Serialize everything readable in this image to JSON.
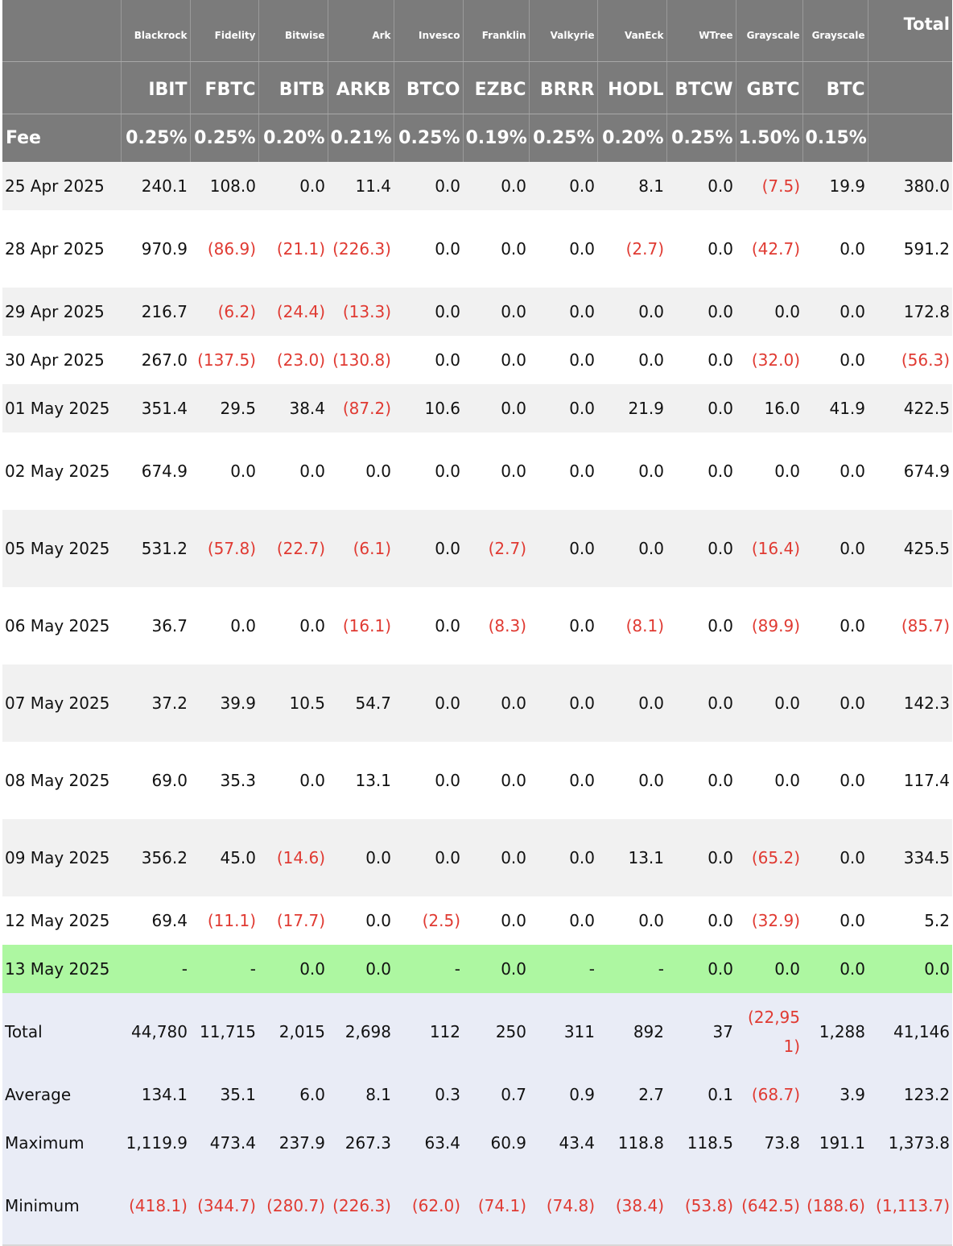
{
  "header": {
    "issuers": [
      "Blackrock",
      "Fidelity",
      "Bitwise",
      "Ark",
      "Invesco",
      "Franklin",
      "Valkyrie",
      "VanEck",
      "WTree",
      "Grayscale",
      "Grayscale"
    ],
    "total_label": "Total",
    "tickers": [
      "IBIT",
      "FBTC",
      "BITB",
      "ARKB",
      "BTCO",
      "EZBC",
      "BRRR",
      "HODL",
      "BTCW",
      "GBTC",
      "BTC"
    ],
    "fee_label": "Fee",
    "fees": [
      "0.25%",
      "0.25%",
      "0.20%",
      "0.21%",
      "0.25%",
      "0.19%",
      "0.25%",
      "0.20%",
      "0.25%",
      "1.50%",
      "0.15%"
    ]
  },
  "rows": [
    {
      "date": "25 Apr 2025",
      "values": [
        "240.1",
        "108.0",
        "0.0",
        "11.4",
        "0.0",
        "0.0",
        "0.0",
        "8.1",
        "0.0",
        "(7.5)",
        "19.9",
        "380.0"
      ]
    },
    {
      "date": "28 Apr 2025",
      "values": [
        "970.9",
        "(86.9)",
        "(21.1)",
        "(226.3)",
        "0.0",
        "0.0",
        "0.0",
        "(2.7)",
        "0.0",
        "(42.7)",
        "0.0",
        "591.2"
      ]
    },
    {
      "date": "29 Apr 2025",
      "values": [
        "216.7",
        "(6.2)",
        "(24.4)",
        "(13.3)",
        "0.0",
        "0.0",
        "0.0",
        "0.0",
        "0.0",
        "0.0",
        "0.0",
        "172.8"
      ]
    },
    {
      "date": "30 Apr 2025",
      "values": [
        "267.0",
        "(137.5)",
        "(23.0)",
        "(130.8)",
        "0.0",
        "0.0",
        "0.0",
        "0.0",
        "0.0",
        "(32.0)",
        "0.0",
        "(56.3)"
      ]
    },
    {
      "date": "01 May 2025",
      "values": [
        "351.4",
        "29.5",
        "38.4",
        "(87.2)",
        "10.6",
        "0.0",
        "0.0",
        "21.9",
        "0.0",
        "16.0",
        "41.9",
        "422.5"
      ]
    },
    {
      "date": "02 May 2025",
      "values": [
        "674.9",
        "0.0",
        "0.0",
        "0.0",
        "0.0",
        "0.0",
        "0.0",
        "0.0",
        "0.0",
        "0.0",
        "0.0",
        "674.9"
      ]
    },
    {
      "date": "05 May 2025",
      "values": [
        "531.2",
        "(57.8)",
        "(22.7)",
        "(6.1)",
        "0.0",
        "(2.7)",
        "0.0",
        "0.0",
        "0.0",
        "(16.4)",
        "0.0",
        "425.5"
      ]
    },
    {
      "date": "06 May 2025",
      "values": [
        "36.7",
        "0.0",
        "0.0",
        "(16.1)",
        "0.0",
        "(8.3)",
        "0.0",
        "(8.1)",
        "0.0",
        "(89.9)",
        "0.0",
        "(85.7)"
      ]
    },
    {
      "date": "07 May 2025",
      "values": [
        "37.2",
        "39.9",
        "10.5",
        "54.7",
        "0.0",
        "0.0",
        "0.0",
        "0.0",
        "0.0",
        "0.0",
        "0.0",
        "142.3"
      ]
    },
    {
      "date": "08 May 2025",
      "values": [
        "69.0",
        "35.3",
        "0.0",
        "13.1",
        "0.0",
        "0.0",
        "0.0",
        "0.0",
        "0.0",
        "0.0",
        "0.0",
        "117.4"
      ]
    },
    {
      "date": "09 May 2025",
      "values": [
        "356.2",
        "45.0",
        "(14.6)",
        "0.0",
        "0.0",
        "0.0",
        "0.0",
        "13.1",
        "0.0",
        "(65.2)",
        "0.0",
        "334.5"
      ]
    },
    {
      "date": "12 May 2025",
      "values": [
        "69.4",
        "(11.1)",
        "(17.7)",
        "0.0",
        "(2.5)",
        "0.0",
        "0.0",
        "0.0",
        "0.0",
        "(32.9)",
        "0.0",
        "5.2"
      ]
    },
    {
      "date": "13 May 2025",
      "values": [
        "-",
        "-",
        "0.0",
        "0.0",
        "-",
        "0.0",
        "-",
        "-",
        "0.0",
        "0.0",
        "0.0",
        "0.0"
      ]
    }
  ],
  "summary": [
    {
      "label": "Total",
      "values": [
        "44,780",
        "11,715",
        "2,015",
        "2,698",
        "112",
        "250",
        "311",
        "892",
        "37",
        "(22,951)",
        "1,288",
        "41,146"
      ]
    },
    {
      "label": "Average",
      "values": [
        "134.1",
        "35.1",
        "6.0",
        "8.1",
        "0.3",
        "0.7",
        "0.9",
        "2.7",
        "0.1",
        "(68.7)",
        "3.9",
        "123.2"
      ]
    },
    {
      "label": "Maximum",
      "values": [
        "1,119.9",
        "473.4",
        "237.9",
        "267.3",
        "63.4",
        "60.9",
        "43.4",
        "118.8",
        "118.5",
        "73.8",
        "191.1",
        "1,373.8"
      ]
    },
    {
      "label": "Minimum",
      "values": [
        "(418.1)",
        "(344.7)",
        "(280.7)",
        "(226.3)",
        "(62.0)",
        "(74.1)",
        "(74.8)",
        "(38.4)",
        "(53.8)",
        "(642.5)",
        "(188.6)",
        "(1,113.7)"
      ]
    }
  ],
  "colors": {
    "header_bg": "#7b7b7b",
    "negative": "#e03a32",
    "highlight_row": "#adf7a1",
    "summary_bg": "#e9ecf6"
  }
}
